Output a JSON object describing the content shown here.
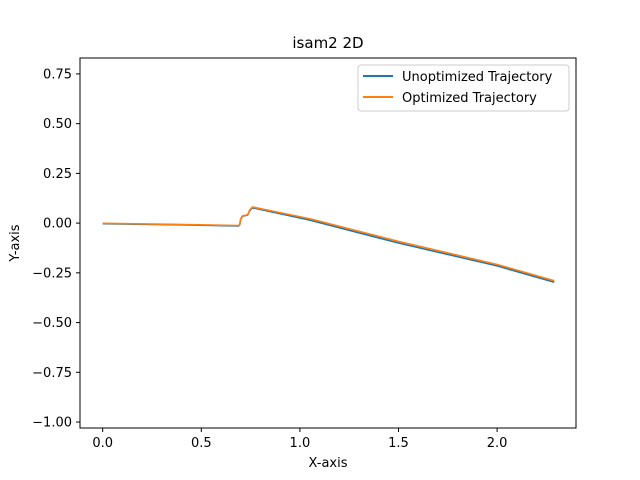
{
  "chart_data": {
    "type": "line",
    "title": "isam2 2D",
    "xlabel": "X-axis",
    "ylabel": "Y-axis",
    "xlim": [
      -0.115,
      2.4
    ],
    "ylim": [
      -1.03,
      0.83
    ],
    "xticks": [
      0.0,
      0.5,
      1.0,
      1.5,
      2.0
    ],
    "xtick_labels": [
      "0.0",
      "0.5",
      "1.0",
      "1.5",
      "2.0"
    ],
    "yticks": [
      -1.0,
      -0.75,
      -0.5,
      -0.25,
      0.0,
      0.25,
      0.5,
      0.75
    ],
    "ytick_labels": [
      "−1.00",
      "−0.75",
      "−0.50",
      "−0.25",
      "0.00",
      "0.25",
      "0.50",
      "0.75"
    ],
    "grid": false,
    "legend_position": "top-right",
    "series": [
      {
        "name": "Unoptimized Trajectory",
        "color": "#1f77b4",
        "x": [
          0.0,
          0.35,
          0.69,
          0.695,
          0.7,
          0.71,
          0.72,
          0.735,
          0.745,
          0.76,
          1.05,
          1.5,
          2.0,
          2.29
        ],
        "y": [
          -0.003,
          -0.008,
          -0.014,
          -0.008,
          0.02,
          0.035,
          0.037,
          0.04,
          0.062,
          0.077,
          0.015,
          -0.1,
          -0.215,
          -0.297
        ]
      },
      {
        "name": "Optimized Trajectory",
        "color": "#ff7f0e",
        "x": [
          0.0,
          0.35,
          0.69,
          0.695,
          0.7,
          0.71,
          0.72,
          0.735,
          0.745,
          0.76,
          1.05,
          1.5,
          2.0,
          2.29
        ],
        "y": [
          -0.001,
          -0.006,
          -0.012,
          -0.006,
          0.022,
          0.037,
          0.039,
          0.042,
          0.065,
          0.081,
          0.022,
          -0.092,
          -0.208,
          -0.29
        ]
      }
    ]
  }
}
